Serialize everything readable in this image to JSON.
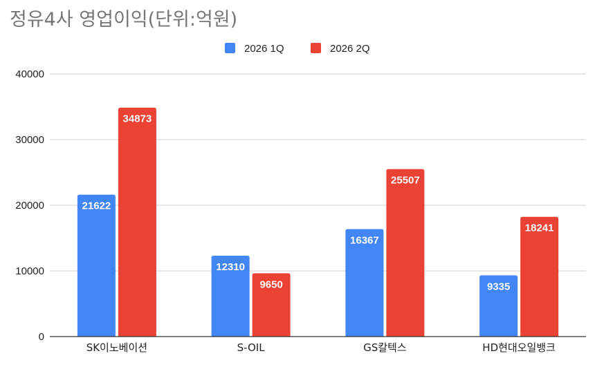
{
  "chart_data": {
    "type": "bar",
    "title": "정유4사 영업이익(단위:억원)",
    "categories": [
      "SK이노베이션",
      "S-OIL",
      "GS칼텍스",
      "HD현대오일뱅크"
    ],
    "series": [
      {
        "name": "2026 1Q",
        "color": "#4285f4",
        "values": [
          21622,
          12310,
          16367,
          9335
        ]
      },
      {
        "name": "2026 2Q",
        "color": "#ea4335",
        "values": [
          34873,
          9650,
          25507,
          18241
        ]
      }
    ],
    "ylim": [
      0,
      40000
    ],
    "yticks": [
      0,
      10000,
      20000,
      30000,
      40000
    ],
    "grid": true,
    "legend_position": "top-center",
    "data_labels": true
  }
}
